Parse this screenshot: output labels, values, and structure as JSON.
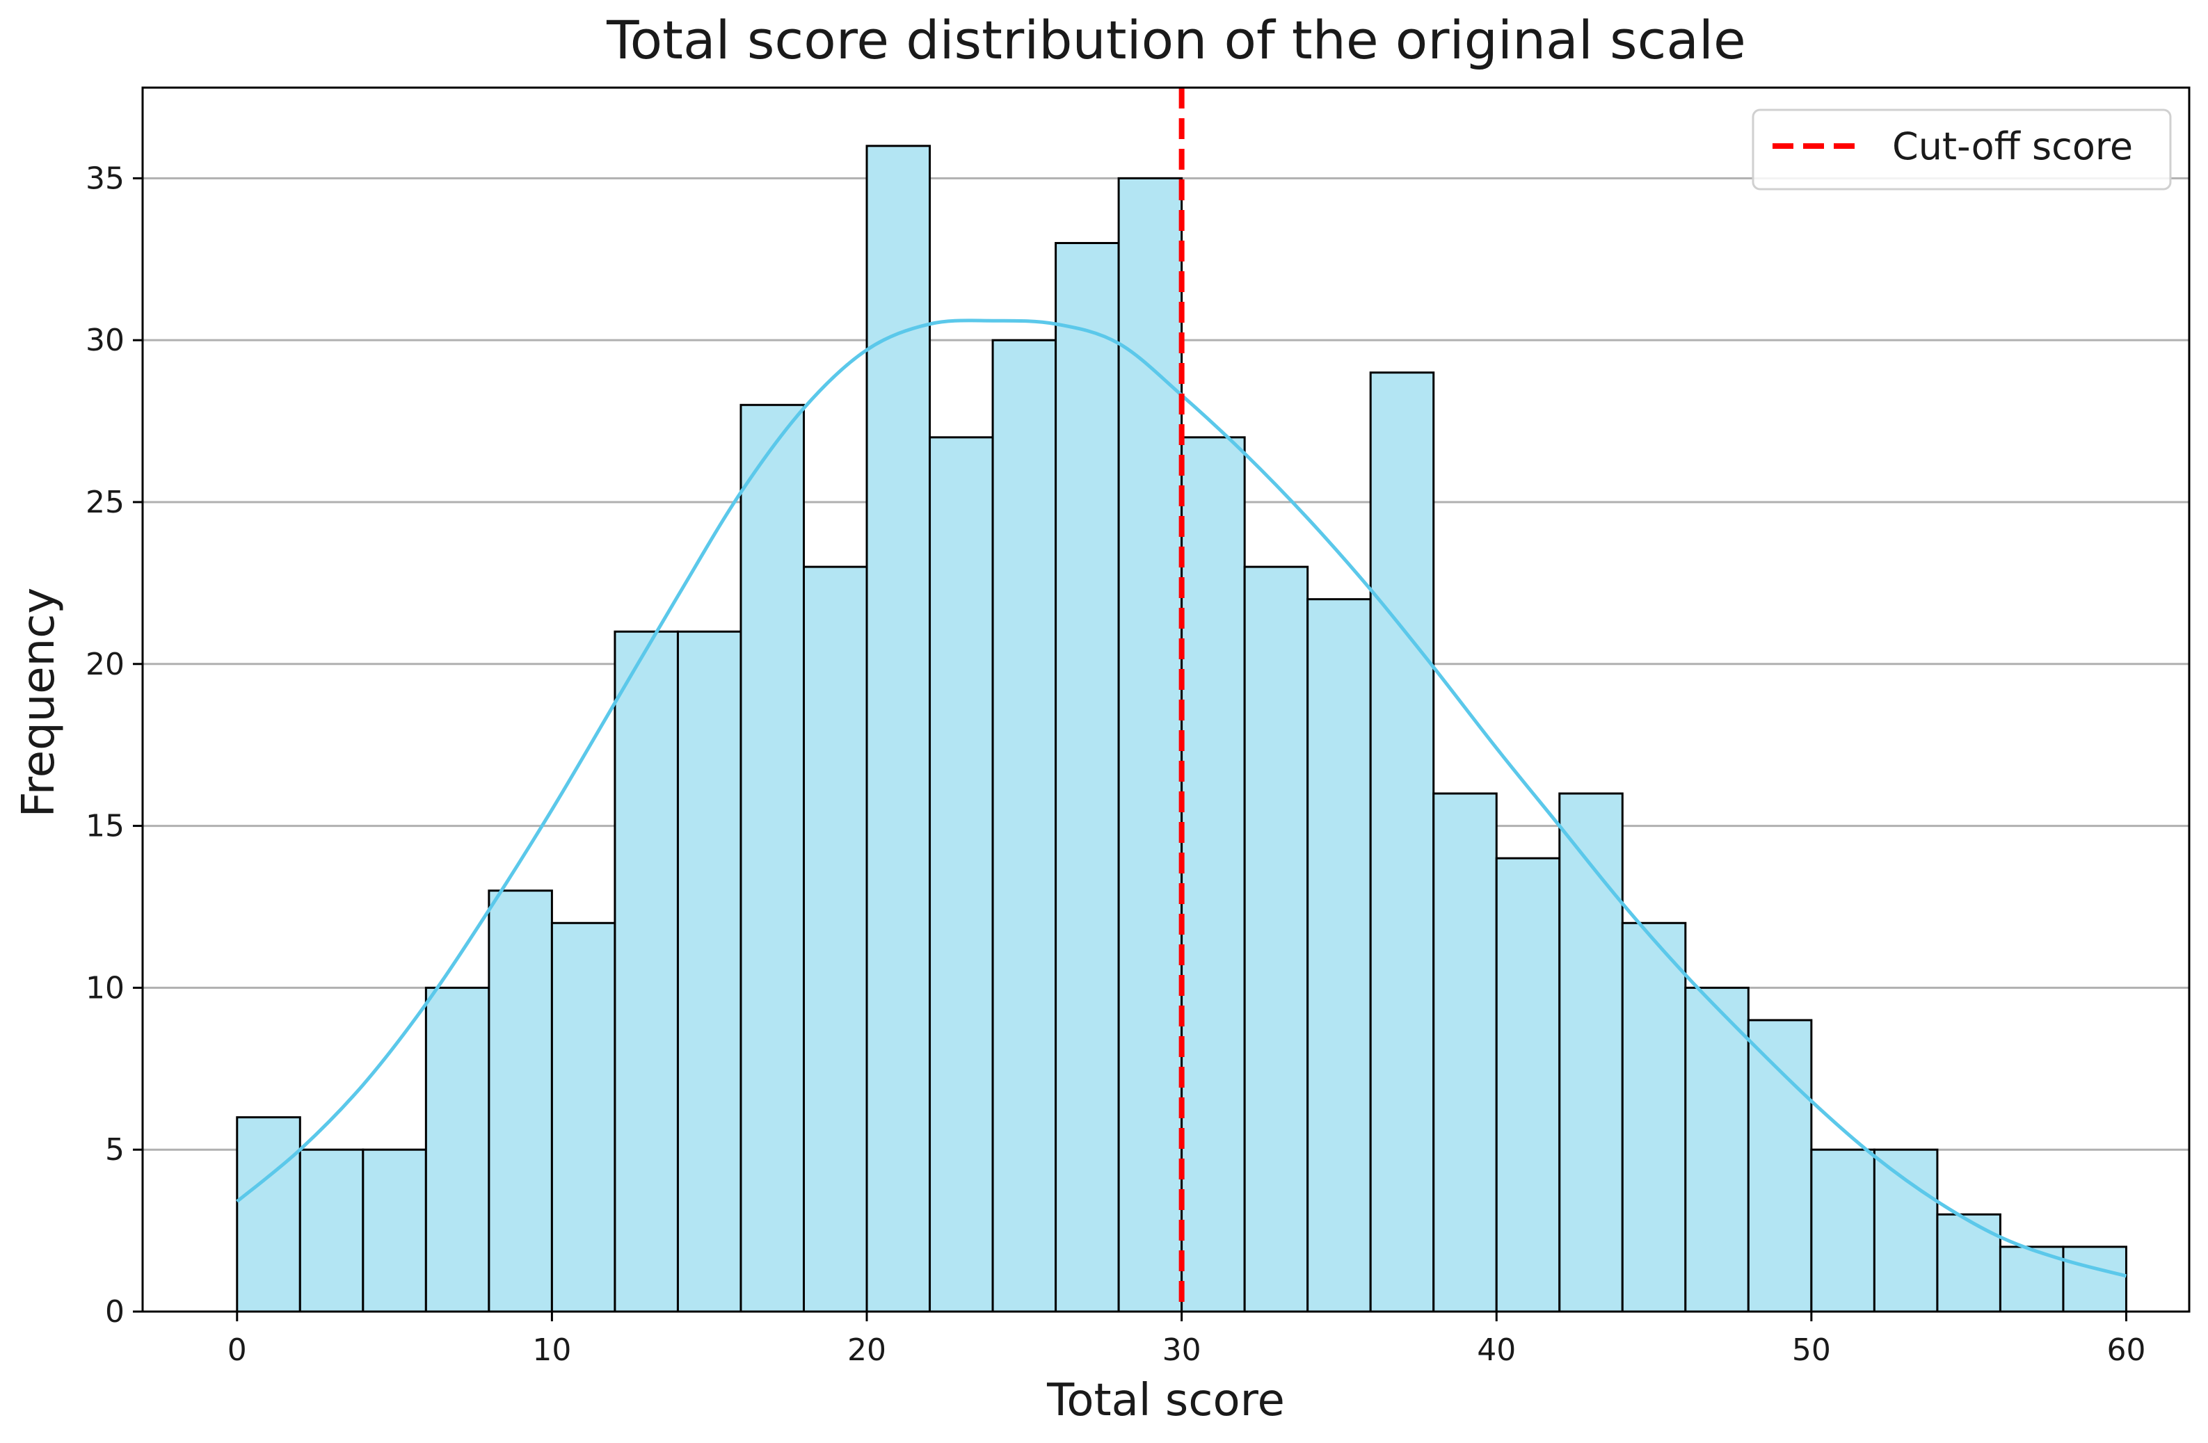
{
  "chart_data": {
    "type": "bar",
    "title": "Total score distribution of the original scale",
    "xlabel": "Total score",
    "ylabel": "Frequency",
    "xlim": [
      -3,
      62
    ],
    "ylim": [
      0,
      37.8
    ],
    "x_ticks": [
      0,
      10,
      20,
      30,
      40,
      50,
      60
    ],
    "y_ticks": [
      0,
      5,
      10,
      15,
      20,
      25,
      30,
      35
    ],
    "grid": "horizontal",
    "bin_edges": [
      0,
      2,
      4,
      6,
      8,
      10,
      12,
      14,
      16,
      18,
      20,
      22,
      24,
      26,
      28,
      30,
      32,
      34,
      36,
      38,
      40,
      42,
      44,
      46,
      48,
      50,
      52,
      54,
      56,
      58,
      60
    ],
    "values": [
      6,
      5,
      5,
      10,
      13,
      12,
      21,
      21,
      28,
      23,
      36,
      27,
      30,
      33,
      35,
      27,
      23,
      22,
      29,
      16,
      14,
      16,
      12,
      10,
      9,
      5,
      5,
      3,
      2,
      2
    ],
    "kde": {
      "x": [
        0,
        2,
        4,
        6,
        8,
        10,
        12,
        14,
        16,
        18,
        20,
        22,
        24,
        26,
        28,
        30,
        32,
        34,
        36,
        38,
        40,
        42,
        44,
        46,
        48,
        50,
        52,
        54,
        56,
        58,
        60
      ],
      "y": [
        3.4,
        5.0,
        7.0,
        9.5,
        12.4,
        15.5,
        18.8,
        22.1,
        25.3,
        27.9,
        29.7,
        30.5,
        30.6,
        30.5,
        29.9,
        28.3,
        26.5,
        24.5,
        22.3,
        19.9,
        17.4,
        15.0,
        12.6,
        10.4,
        8.4,
        6.5,
        4.8,
        3.4,
        2.3,
        1.6,
        1.1
      ],
      "color": "#5bc8ea"
    },
    "bar_color": "#b3e5f3",
    "bar_edge_color": "#000000",
    "cutoff": {
      "x": 30,
      "label": "Cut-off score",
      "color": "#ff0000",
      "style": "dashed"
    },
    "legend": {
      "position": "top-right",
      "entries": [
        "Cut-off score"
      ]
    }
  }
}
